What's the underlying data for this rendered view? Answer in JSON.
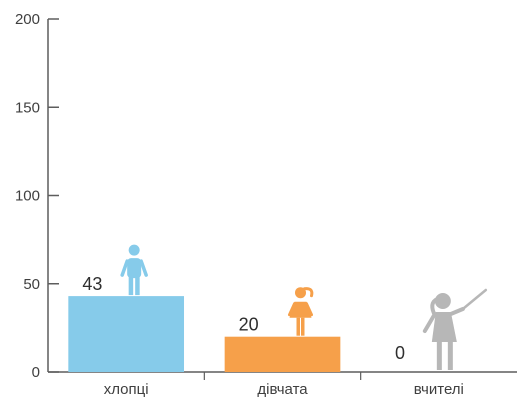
{
  "chart_data": {
    "type": "bar",
    "categories": [
      "хлопці",
      "дівчата",
      "вчителі"
    ],
    "values": [
      43,
      20,
      0
    ],
    "value_labels": [
      "43",
      "20",
      "0"
    ],
    "ylim": [
      0,
      200
    ],
    "y_ticks": [
      0,
      50,
      100,
      150,
      200
    ],
    "y_tick_labels": [
      "0",
      "50",
      "100",
      "150",
      "200"
    ],
    "grid": false,
    "colors": [
      "#86cbea",
      "#f6a04a",
      "#b7b7b7"
    ],
    "icons": [
      "boy-icon",
      "girl-icon",
      "teacher-icon"
    ]
  }
}
